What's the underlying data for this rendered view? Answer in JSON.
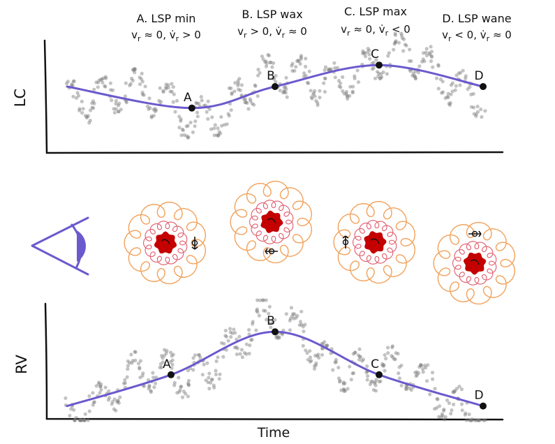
{
  "phases": [
    {
      "title": "A. LSP min",
      "cond": {
        "v": "v",
        "r1": "r",
        "rel1": " ≈ 0, ",
        "vd": "v̇",
        "r2": "r",
        "rel2": " > 0"
      }
    },
    {
      "title": "B. LSP wax",
      "cond": {
        "v": "v",
        "r1": "r",
        "rel1": " > 0, ",
        "vd": "v̇",
        "r2": "r",
        "rel2": " ≈ 0"
      }
    },
    {
      "title": "C. LSP max",
      "cond": {
        "v": "v",
        "r1": "r",
        "rel1": " ≈ 0, ",
        "vd": "v̇",
        "r2": "r",
        "rel2": " < 0"
      }
    },
    {
      "title": "D. LSP wane",
      "cond": {
        "v": "v",
        "r1": "r",
        "rel1": " < 0, ",
        "vd": "v̇",
        "r2": "r",
        "rel2": " ≈ 0"
      }
    }
  ],
  "lc_panel": {
    "ylabel": "LC",
    "points": [
      {
        "label": "A",
        "t": 0.3,
        "value": 0.38
      },
      {
        "label": "B",
        "t": 0.5,
        "value": 0.6
      },
      {
        "label": "C",
        "t": 0.75,
        "value": 0.82
      },
      {
        "label": "D",
        "t": 1.0,
        "value": 0.6
      }
    ]
  },
  "rv_panel": {
    "ylabel": "RV",
    "xlabel": "Time",
    "points": [
      {
        "label": "A",
        "t": 0.25,
        "value": 0.38
      },
      {
        "label": "B",
        "t": 0.5,
        "value": 0.82
      },
      {
        "label": "C",
        "t": 0.75,
        "value": 0.38
      },
      {
        "label": "D",
        "t": 1.0,
        "value": 0.06
      }
    ]
  },
  "colors": {
    "curve": "#6a5acd",
    "scatter": "#7a7a7a",
    "outer_ring": "#f2a15a",
    "inner_ring": "#e05a6a",
    "core": "#c40000",
    "eye": "#6a5acd"
  },
  "icons": {
    "observer": "eye-icon",
    "rotation": "rotation-arrow-icon"
  }
}
